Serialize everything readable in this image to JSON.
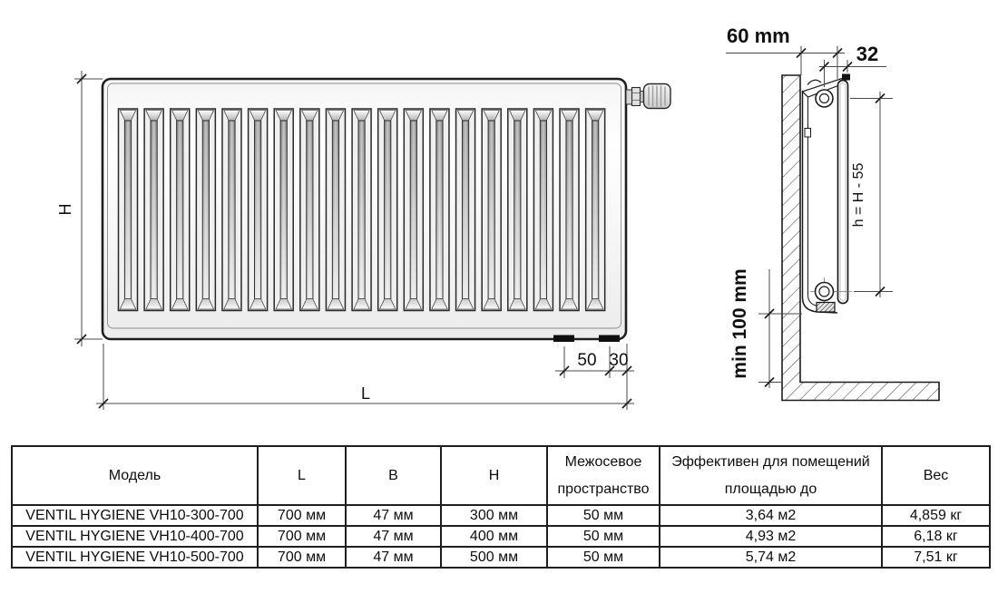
{
  "diagram": {
    "front_view": {
      "height_label": "H",
      "length_label": "L",
      "dim_50_label": "50",
      "dim_30_label": "30",
      "slat_count": 19
    },
    "side_view": {
      "wall_offset_label": "60 mm",
      "depth_label": "32",
      "mount_height_label": "h = H - 55",
      "floor_clearance_label": "min 100 mm"
    }
  },
  "table": {
    "headers": {
      "model": "Модель",
      "l": "L",
      "b": "B",
      "h": "H",
      "spacing_line1": "Межосевое",
      "spacing_line2": "пространство",
      "effective_line1": "Эффективен для помещений",
      "effective_line2": "площадью до",
      "weight": "Вес"
    },
    "rows": [
      {
        "cells": [
          "VENTIL HYGIENE VH10-300-700",
          "700 мм",
          "47 мм",
          "300 мм",
          "50 мм",
          "3,64 м2",
          "4,859 кг"
        ]
      },
      {
        "cells": [
          "VENTIL HYGIENE VH10-400-700",
          "700 мм",
          "47 мм",
          "400 мм",
          "50 мм",
          "4,93 м2",
          "6,18 кг"
        ]
      },
      {
        "cells": [
          "VENTIL HYGIENE VH10-500-700",
          "700 мм",
          "47 мм",
          "500 мм",
          "50 мм",
          "5,74 м2",
          "7,51 кг"
        ]
      }
    ]
  }
}
